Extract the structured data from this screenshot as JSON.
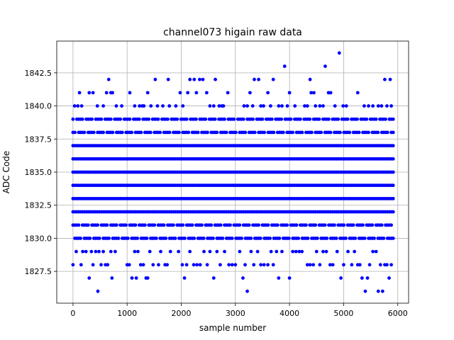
{
  "chart_data": {
    "type": "scatter",
    "title": "channel073 higain raw data",
    "xlabel": "sample number",
    "ylabel": "ADC Code",
    "xlim": [
      -300,
      6200
    ],
    "ylim": [
      1825.1,
      1844.9
    ],
    "xticks": [
      0,
      1000,
      2000,
      3000,
      4000,
      5000,
      6000
    ],
    "xtick_labels": [
      "0",
      "1000",
      "2000",
      "3000",
      "4000",
      "5000",
      "6000"
    ],
    "yticks": [
      1827.5,
      1830.0,
      1832.5,
      1835.0,
      1837.5,
      1840.0,
      1842.5
    ],
    "ytick_labels": [
      "1827.5",
      "1830.0",
      "1832.5",
      "1835.0",
      "1837.5",
      "1840.0",
      "1842.5"
    ],
    "grid": true,
    "marker_color": "#0000ff",
    "x_range": [
      0,
      5920
    ],
    "dense_levels": [
      1830,
      1831,
      1832,
      1833,
      1834,
      1835,
      1836,
      1837,
      1838,
      1839
    ],
    "series": [
      {
        "points": [
          [
            0,
            1828
          ],
          [
            60,
            1829
          ],
          [
            150,
            1828
          ],
          [
            180,
            1829
          ],
          [
            240,
            1829
          ],
          [
            300,
            1827
          ],
          [
            340,
            1829
          ],
          [
            370,
            1828
          ],
          [
            420,
            1829
          ],
          [
            460,
            1826
          ],
          [
            480,
            1829
          ],
          [
            520,
            1828
          ],
          [
            560,
            1829
          ],
          [
            600,
            1828
          ],
          [
            640,
            1828
          ],
          [
            700,
            1829
          ],
          [
            720,
            1827
          ],
          [
            780,
            1829
          ],
          [
            1000,
            1828
          ],
          [
            1040,
            1828
          ],
          [
            1090,
            1827
          ],
          [
            1140,
            1829
          ],
          [
            1170,
            1827
          ],
          [
            1200,
            1829
          ],
          [
            1250,
            1828
          ],
          [
            1300,
            1828
          ],
          [
            1350,
            1827
          ],
          [
            1380,
            1827
          ],
          [
            1420,
            1829
          ],
          [
            1480,
            1828
          ],
          [
            1580,
            1828
          ],
          [
            1620,
            1829
          ],
          [
            1700,
            1828
          ],
          [
            1740,
            1828
          ],
          [
            1800,
            1829
          ],
          [
            1950,
            1829
          ],
          [
            2020,
            1828
          ],
          [
            2060,
            1827
          ],
          [
            2100,
            1828
          ],
          [
            2160,
            1829
          ],
          [
            2230,
            1828
          ],
          [
            2290,
            1828
          ],
          [
            2350,
            1828
          ],
          [
            2420,
            1829
          ],
          [
            2480,
            1828
          ],
          [
            2530,
            1829
          ],
          [
            2600,
            1827
          ],
          [
            2660,
            1829
          ],
          [
            2720,
            1828
          ],
          [
            2800,
            1829
          ],
          [
            2880,
            1828
          ],
          [
            2940,
            1828
          ],
          [
            3000,
            1828
          ],
          [
            3080,
            1829
          ],
          [
            3140,
            1827
          ],
          [
            3180,
            1828
          ],
          [
            3220,
            1826
          ],
          [
            3290,
            1829
          ],
          [
            3340,
            1828
          ],
          [
            3410,
            1829
          ],
          [
            3470,
            1828
          ],
          [
            3530,
            1828
          ],
          [
            3600,
            1828
          ],
          [
            3660,
            1829
          ],
          [
            3700,
            1828
          ],
          [
            3760,
            1829
          ],
          [
            3800,
            1827
          ],
          [
            3860,
            1829
          ],
          [
            4000,
            1827
          ],
          [
            4060,
            1829
          ],
          [
            4120,
            1829
          ],
          [
            4180,
            1829
          ],
          [
            4230,
            1829
          ],
          [
            4330,
            1828
          ],
          [
            4380,
            1828
          ],
          [
            4440,
            1828
          ],
          [
            4500,
            1829
          ],
          [
            4560,
            1828
          ],
          [
            4620,
            1829
          ],
          [
            4680,
            1829
          ],
          [
            4750,
            1828
          ],
          [
            4800,
            1828
          ],
          [
            4880,
            1829
          ],
          [
            4950,
            1827
          ],
          [
            5000,
            1828
          ],
          [
            5080,
            1829
          ],
          [
            5150,
            1828
          ],
          [
            5200,
            1829
          ],
          [
            5260,
            1828
          ],
          [
            5300,
            1828
          ],
          [
            5340,
            1827
          ],
          [
            5400,
            1826
          ],
          [
            5440,
            1827
          ],
          [
            5480,
            1828
          ],
          [
            5540,
            1829
          ],
          [
            5600,
            1829
          ],
          [
            5640,
            1826
          ],
          [
            5680,
            1828
          ],
          [
            5720,
            1826
          ],
          [
            5760,
            1828
          ],
          [
            5800,
            1828
          ],
          [
            5840,
            1827
          ],
          [
            5880,
            1828
          ],
          [
            30,
            1840
          ],
          [
            90,
            1840
          ],
          [
            120,
            1841
          ],
          [
            160,
            1840
          ],
          [
            300,
            1841
          ],
          [
            370,
            1841
          ],
          [
            450,
            1840
          ],
          [
            560,
            1840
          ],
          [
            620,
            1841
          ],
          [
            660,
            1842
          ],
          [
            700,
            1841
          ],
          [
            730,
            1841
          ],
          [
            800,
            1840
          ],
          [
            900,
            1840
          ],
          [
            1050,
            1841
          ],
          [
            1140,
            1840
          ],
          [
            1230,
            1840
          ],
          [
            1280,
            1840
          ],
          [
            1310,
            1840
          ],
          [
            1380,
            1841
          ],
          [
            1440,
            1840
          ],
          [
            1520,
            1842
          ],
          [
            1560,
            1840
          ],
          [
            1660,
            1840
          ],
          [
            1760,
            1842
          ],
          [
            1780,
            1840
          ],
          [
            1900,
            1840
          ],
          [
            1980,
            1841
          ],
          [
            2030,
            1840
          ],
          [
            2120,
            1841
          ],
          [
            2160,
            1842
          ],
          [
            2240,
            1842
          ],
          [
            2280,
            1841
          ],
          [
            2340,
            1842
          ],
          [
            2400,
            1842
          ],
          [
            2470,
            1841
          ],
          [
            2530,
            1840
          ],
          [
            2600,
            1840
          ],
          [
            2630,
            1842
          ],
          [
            2700,
            1840
          ],
          [
            2750,
            1840
          ],
          [
            2780,
            1840
          ],
          [
            2860,
            1841
          ],
          [
            3160,
            1840
          ],
          [
            3220,
            1840
          ],
          [
            3270,
            1841
          ],
          [
            3320,
            1840
          ],
          [
            3350,
            1842
          ],
          [
            3430,
            1842
          ],
          [
            3470,
            1840
          ],
          [
            3520,
            1840
          ],
          [
            3600,
            1841
          ],
          [
            3650,
            1840
          ],
          [
            3700,
            1842
          ],
          [
            3800,
            1840
          ],
          [
            3860,
            1840
          ],
          [
            3910,
            1843
          ],
          [
            3960,
            1840
          ],
          [
            4000,
            1841
          ],
          [
            4100,
            1840
          ],
          [
            4280,
            1840
          ],
          [
            4330,
            1840
          ],
          [
            4380,
            1842
          ],
          [
            4400,
            1841
          ],
          [
            4450,
            1841
          ],
          [
            4480,
            1840
          ],
          [
            4560,
            1840
          ],
          [
            4620,
            1840
          ],
          [
            4660,
            1843
          ],
          [
            4720,
            1841
          ],
          [
            4760,
            1841
          ],
          [
            4840,
            1840
          ],
          [
            4920,
            1844
          ],
          [
            4990,
            1840
          ],
          [
            5050,
            1840
          ],
          [
            5260,
            1841
          ],
          [
            5380,
            1840
          ],
          [
            5460,
            1840
          ],
          [
            5540,
            1840
          ],
          [
            5640,
            1840
          ],
          [
            5700,
            1840
          ],
          [
            5760,
            1842
          ],
          [
            5800,
            1840
          ],
          [
            5860,
            1842
          ],
          [
            5880,
            1840
          ]
        ]
      }
    ]
  }
}
